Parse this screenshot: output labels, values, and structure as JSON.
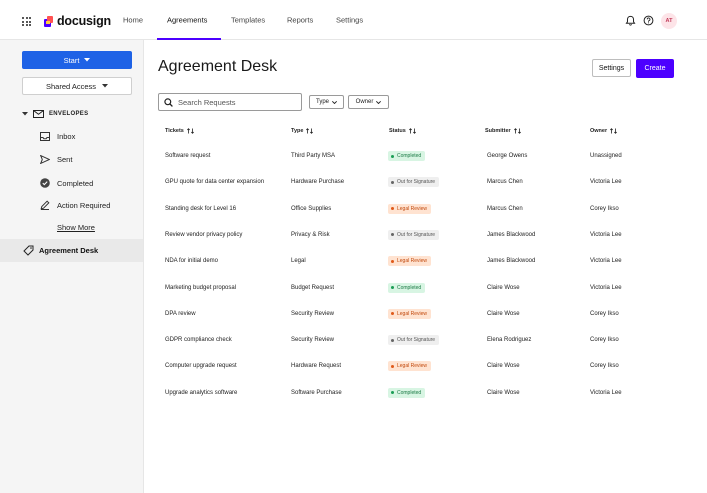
{
  "topnav": {
    "brand": "docusign",
    "items": [
      "Home",
      "Agreements",
      "Templates",
      "Reports",
      "Settings"
    ],
    "active": "Agreements",
    "avatar_initials": "AT"
  },
  "sidebar": {
    "start_label": "Start",
    "shared_access_label": "Shared Access",
    "envelopes_label": "ENVELOPES",
    "items": [
      {
        "label": "Inbox",
        "icon": "inbox-icon"
      },
      {
        "label": "Sent",
        "icon": "send-icon"
      },
      {
        "label": "Completed",
        "icon": "check-circle-icon"
      },
      {
        "label": "Action Required",
        "icon": "pen-icon"
      }
    ],
    "show_more": "Show More",
    "agreement_desk": "Agreement Desk"
  },
  "main": {
    "title": "Agreement Desk",
    "settings_label": "Settings",
    "create_label": "Create",
    "search_placeholder": "Search Requests",
    "filters": [
      "Type",
      "Owner"
    ]
  },
  "table": {
    "columns": [
      "Tickets",
      "Type",
      "Status",
      "Submitter",
      "Owner"
    ],
    "rows": [
      {
        "ticket": "Software request",
        "type": "Third Party MSA",
        "status": "Completed",
        "status_kind": "completed",
        "submitter": "George Owens",
        "owner": "Unassigned"
      },
      {
        "ticket": "GPU quote for data center expansion",
        "type": "Hardware Purchase",
        "status": "Out for Signature",
        "status_kind": "out",
        "submitter": "Marcus Chen",
        "owner": "Victoria Lee"
      },
      {
        "ticket": "Standing desk for Level 16",
        "type": "Office Supplies",
        "status": "Legal Review",
        "status_kind": "legal",
        "submitter": "Marcus Chen",
        "owner": "Corey Ikso"
      },
      {
        "ticket": "Review vendor privacy policy",
        "type": "Privacy & Risk",
        "status": "Out for Signature",
        "status_kind": "out",
        "submitter": "James Blackwood",
        "owner": "Victoria Lee"
      },
      {
        "ticket": "NDA for initial demo",
        "type": "Legal",
        "status": "Legal Review",
        "status_kind": "legal",
        "submitter": "James Blackwood",
        "owner": "Victoria Lee"
      },
      {
        "ticket": "Marketing budget proposal",
        "type": "Budget Request",
        "status": "Completed",
        "status_kind": "completed",
        "submitter": "Claire Wose",
        "owner": "Victoria Lee"
      },
      {
        "ticket": "DPA review",
        "type": "Security Review",
        "status": "Legal Review",
        "status_kind": "legal",
        "submitter": "Claire Wose",
        "owner": "Corey Ikso"
      },
      {
        "ticket": "GDPR compliance check",
        "type": "Security Review",
        "status": "Out for Signature",
        "status_kind": "out",
        "submitter": "Elena Rodriguez",
        "owner": "Corey Ikso"
      },
      {
        "ticket": "Computer upgrade request",
        "type": "Hardware Request",
        "status": "Legal Review",
        "status_kind": "legal",
        "submitter": "Claire Wose",
        "owner": "Corey Ikso"
      },
      {
        "ticket": "Upgrade analytics software",
        "type": "Software Purchase",
        "status": "Completed",
        "status_kind": "completed",
        "submitter": "Claire Wose",
        "owner": "Victoria Lee"
      }
    ]
  },
  "colors": {
    "accent": "#4c00ff",
    "start_button": "#1e62e6"
  }
}
